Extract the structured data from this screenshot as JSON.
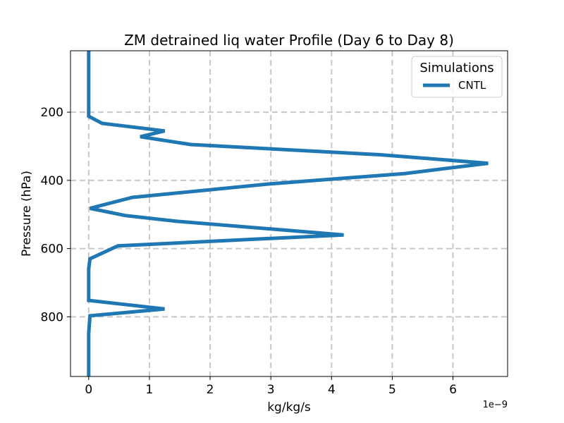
{
  "chart_data": {
    "type": "line",
    "title": "ZM detrained liq water Profile (Day 6 to Day 8)",
    "xlabel": "kg/kg/s",
    "ylabel": "Pressure (hPa)",
    "x_offset_text": "1e−9",
    "xlim": [
      -0.3,
      6.9
    ],
    "ylim": [
      975,
      20
    ],
    "y_inverted": true,
    "x_ticks": [
      0,
      1,
      2,
      3,
      4,
      5,
      6
    ],
    "x_tick_labels": [
      "0",
      "1",
      "2",
      "3",
      "4",
      "5",
      "6"
    ],
    "y_ticks": [
      200,
      400,
      600,
      800
    ],
    "y_tick_labels": [
      "200",
      "400",
      "600",
      "800"
    ],
    "grid": true,
    "grid_style": "dashed",
    "legend": {
      "title": "Simulations",
      "placement": "top-right"
    },
    "series": [
      {
        "name": "CNTL",
        "color": "#1f77b4",
        "x_scale": 1e-09,
        "points": [
          {
            "x": 0.0,
            "y": 20
          },
          {
            "x": 0.0,
            "y": 100
          },
          {
            "x": 0.0,
            "y": 150
          },
          {
            "x": 0.0,
            "y": 180
          },
          {
            "x": 0.0,
            "y": 212
          },
          {
            "x": 0.22,
            "y": 233
          },
          {
            "x": 1.25,
            "y": 255
          },
          {
            "x": 0.85,
            "y": 272
          },
          {
            "x": 1.68,
            "y": 295
          },
          {
            "x": 4.8,
            "y": 325
          },
          {
            "x": 6.58,
            "y": 350
          },
          {
            "x": 5.2,
            "y": 380
          },
          {
            "x": 3.0,
            "y": 410
          },
          {
            "x": 0.72,
            "y": 450
          },
          {
            "x": 0.02,
            "y": 482
          },
          {
            "x": 0.6,
            "y": 503
          },
          {
            "x": 1.45,
            "y": 520
          },
          {
            "x": 4.2,
            "y": 560
          },
          {
            "x": 0.48,
            "y": 592
          },
          {
            "x": 0.02,
            "y": 630
          },
          {
            "x": 0.0,
            "y": 660
          },
          {
            "x": 0.0,
            "y": 700
          },
          {
            "x": 0.0,
            "y": 752
          },
          {
            "x": 1.25,
            "y": 777
          },
          {
            "x": 0.02,
            "y": 797
          },
          {
            "x": 0.0,
            "y": 850
          },
          {
            "x": 0.0,
            "y": 900
          },
          {
            "x": 0.0,
            "y": 975
          }
        ]
      }
    ]
  }
}
